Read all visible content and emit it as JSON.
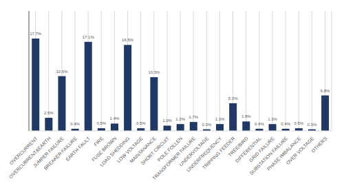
{
  "chart_data": {
    "type": "bar",
    "categories": [
      "OVERCURRENT",
      "OVERCURRENT&EARTH",
      "JUMPER FAILURE",
      "BREAKER FAILURE",
      "EARTH FAULT",
      "FIRE",
      "FUSE BROWN",
      "LOAD SHEDDING",
      "LOW VOLTAGE",
      "MAINTANANCE",
      "SHORT CIRCUIT",
      "POLE FOLLEN",
      "TRANSFORMER FAILURE",
      "UNDERVOLTAGE",
      "UNDERFREQUENCY",
      "TRIPPING FEEDER",
      "TREE/BIRD",
      "DIFFERENTIAL",
      "GRID FAILURE",
      "SUBSTATION FAILURE",
      "PHASE IMBALANCE",
      "OVER VOLTAGE",
      "OTHERS"
    ],
    "values": [
      17.7,
      2.5,
      10.5,
      0.4,
      17.1,
      0.5,
      1.4,
      16.5,
      0.5,
      10.3,
      1.0,
      1.3,
      1.7,
      0.3,
      1.3,
      5.3,
      1.8,
      0.4,
      1.3,
      0.4,
      0.5,
      0.3,
      6.8
    ],
    "value_labels": [
      "17.7%",
      "2.5%",
      "10.5%",
      "0.4%",
      "17.1%",
      "0.5%",
      "1.4%",
      "16.5%",
      "0.5%",
      "10.3%",
      "1.0%",
      "1.3%",
      "1.7%",
      "0.3%",
      "1.3%",
      "5.3%",
      "1.8%",
      "0.4%",
      "1.3%",
      "0.4%",
      "0.5%",
      "0.3%",
      "6.8%"
    ],
    "color": "#1F3864",
    "ylim": [
      0,
      23
    ],
    "grid": true,
    "data_labels": true,
    "tick_labels": "x"
  }
}
